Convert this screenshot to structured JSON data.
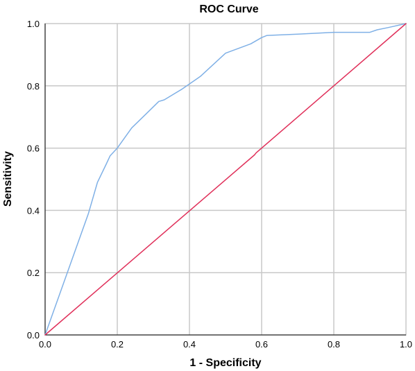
{
  "chart_data": {
    "type": "line",
    "title": "ROC Curve",
    "xlabel": "1 - Specificity",
    "ylabel": "Sensitivity",
    "xlim": [
      0,
      1
    ],
    "ylim": [
      0,
      1
    ],
    "xticks": [
      "0.0",
      "0.2",
      "0.4",
      "0.6",
      "0.8",
      "1.0"
    ],
    "yticks": [
      "0.0",
      "0.2",
      "0.4",
      "0.6",
      "0.8",
      "1.0"
    ],
    "grid": true,
    "series": [
      {
        "color": "#7fb0e6",
        "x": [
          0.0,
          0.04,
          0.08,
          0.12,
          0.145,
          0.17,
          0.18,
          0.2,
          0.24,
          0.28,
          0.315,
          0.33,
          0.38,
          0.43,
          0.5,
          0.57,
          0.6,
          0.615,
          0.7,
          0.8,
          0.9,
          0.92,
          0.95,
          1.0
        ],
        "y": [
          0.0,
          0.13,
          0.26,
          0.39,
          0.49,
          0.55,
          0.575,
          0.6,
          0.665,
          0.71,
          0.75,
          0.755,
          0.79,
          0.83,
          0.905,
          0.935,
          0.955,
          0.962,
          0.966,
          0.972,
          0.972,
          0.98,
          0.987,
          1.0
        ]
      },
      {
        "color": "#e0305a",
        "x": [
          0.0,
          0.58,
          0.585,
          1.0
        ],
        "y": [
          0.0,
          0.578,
          0.585,
          1.0
        ]
      }
    ]
  }
}
